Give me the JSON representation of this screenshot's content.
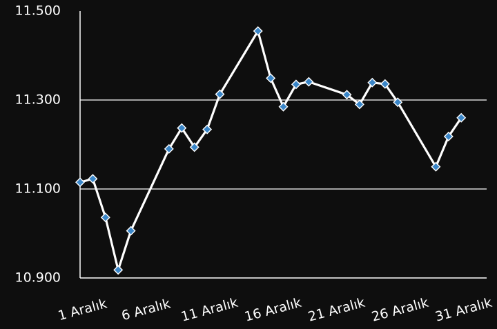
{
  "chart_data": {
    "type": "line",
    "title": "",
    "xlabel": "",
    "ylabel": "",
    "ylim": [
      10900,
      11500
    ],
    "yticks": [
      10900,
      11100,
      11300,
      11500
    ],
    "ytick_labels": [
      "10.900",
      "11.100",
      "11.300",
      "11.500"
    ],
    "xlim": [
      1,
      33
    ],
    "xticks": [
      1,
      6,
      11,
      16,
      21,
      26,
      31
    ],
    "xtick_labels": [
      "1 Aralık",
      "6 Aralık",
      "11 Aralık",
      "16 Aralık",
      "21 Aralık",
      "26 Aralık",
      "31 Aralık"
    ],
    "grid": "horizontal",
    "colors": {
      "background": "#0e0e0e",
      "line": "#ffffff",
      "marker": "#3a86c8",
      "marker_edge": "#ffffff",
      "axis": "#ffffff",
      "grid": "#ffffff"
    },
    "series": [
      {
        "x": [
          1,
          2,
          3,
          4,
          5,
          8,
          9,
          10,
          11,
          12,
          15,
          16,
          17,
          18,
          19,
          22,
          23,
          24,
          25,
          26,
          29,
          30,
          31
        ],
        "y": [
          11115,
          11123,
          11036,
          10918,
          11006,
          11190,
          11237,
          11194,
          11234,
          11313,
          11455,
          11349,
          11285,
          11335,
          11341,
          11312,
          11290,
          11339,
          11336,
          11295,
          11150,
          11218,
          11260
        ]
      }
    ]
  }
}
